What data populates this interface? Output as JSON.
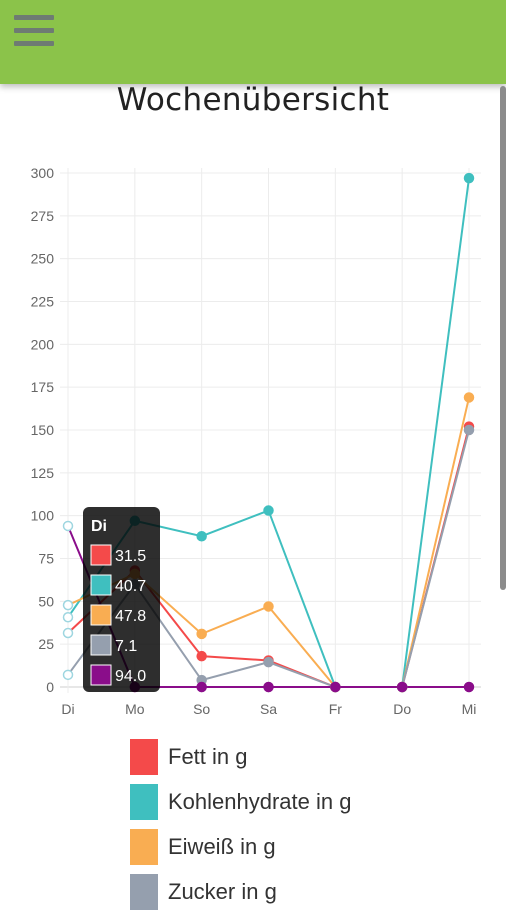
{
  "header": {
    "menu_icon": "hamburger-menu-icon",
    "color": "#8bc34a"
  },
  "page": {
    "title": "Wochenübersicht"
  },
  "chart_data": {
    "type": "line",
    "categories": [
      "Di",
      "Mo",
      "So",
      "Sa",
      "Fr",
      "Do",
      "Mi"
    ],
    "ylim": [
      0,
      300
    ],
    "yticks": [
      0,
      25,
      50,
      75,
      100,
      125,
      150,
      175,
      200,
      225,
      250,
      275,
      300
    ],
    "grid": true,
    "legend_position": "bottom",
    "series": [
      {
        "name": "Fett in g",
        "color": "#f44a4a",
        "values": [
          31.5,
          68,
          18,
          15.5,
          0,
          0,
          152
        ]
      },
      {
        "name": "Kohlenhydrate in g",
        "color": "#3fbfbf",
        "values": [
          40.7,
          97,
          88,
          103,
          0,
          0,
          297
        ]
      },
      {
        "name": "Eiweiß in g",
        "color": "#f9ad52",
        "values": [
          47.8,
          66,
          31,
          47,
          0,
          0,
          169
        ]
      },
      {
        "name": "Zucker in g",
        "color": "#959fae",
        "values": [
          7.1,
          60,
          4,
          14.5,
          0,
          0,
          150
        ]
      },
      {
        "name": "",
        "color": "#8a0d8a",
        "values": [
          94.0,
          0,
          0,
          0,
          0,
          0,
          0
        ]
      }
    ],
    "tooltip": {
      "title": "Di",
      "items": [
        {
          "color": "#f44a4a",
          "value": "31.5"
        },
        {
          "color": "#3fbfbf",
          "value": "40.7"
        },
        {
          "color": "#f9ad52",
          "value": "47.8"
        },
        {
          "color": "#959fae",
          "value": "7.1"
        },
        {
          "color": "#8a0d8a",
          "value": "94.0"
        }
      ]
    }
  }
}
